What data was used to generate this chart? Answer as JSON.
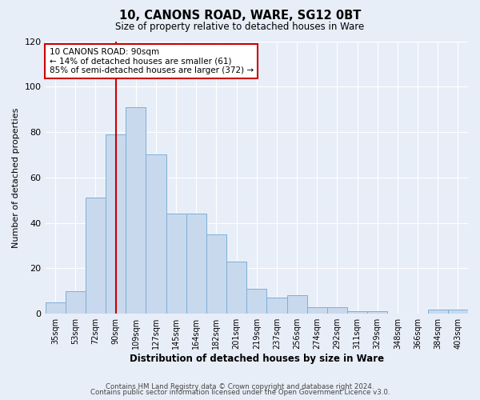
{
  "title": "10, CANONS ROAD, WARE, SG12 0BT",
  "subtitle": "Size of property relative to detached houses in Ware",
  "xlabel": "Distribution of detached houses by size in Ware",
  "ylabel": "Number of detached properties",
  "bar_color": "#c8d9ee",
  "bar_edge_color": "#7eafd4",
  "background_color": "#e8eef8",
  "grid_color": "#ffffff",
  "categories": [
    "35sqm",
    "53sqm",
    "72sqm",
    "90sqm",
    "109sqm",
    "127sqm",
    "145sqm",
    "164sqm",
    "182sqm",
    "201sqm",
    "219sqm",
    "237sqm",
    "256sqm",
    "274sqm",
    "292sqm",
    "311sqm",
    "329sqm",
    "348sqm",
    "366sqm",
    "384sqm",
    "403sqm"
  ],
  "values": [
    5,
    10,
    51,
    79,
    91,
    70,
    44,
    44,
    35,
    23,
    11,
    7,
    8,
    3,
    3,
    1,
    1,
    0,
    0,
    2,
    2
  ],
  "ylim": [
    0,
    120
  ],
  "yticks": [
    0,
    20,
    40,
    60,
    80,
    100,
    120
  ],
  "vline_x_index": 3,
  "vline_color": "#cc0000",
  "annotation_title": "10 CANONS ROAD: 90sqm",
  "annotation_line1": "← 14% of detached houses are smaller (61)",
  "annotation_line2": "85% of semi-detached houses are larger (372) →",
  "annotation_box_color": "#ffffff",
  "annotation_box_edge_color": "#cc0000",
  "footer_line1": "Contains HM Land Registry data © Crown copyright and database right 2024.",
  "footer_line2": "Contains public sector information licensed under the Open Government Licence v3.0."
}
